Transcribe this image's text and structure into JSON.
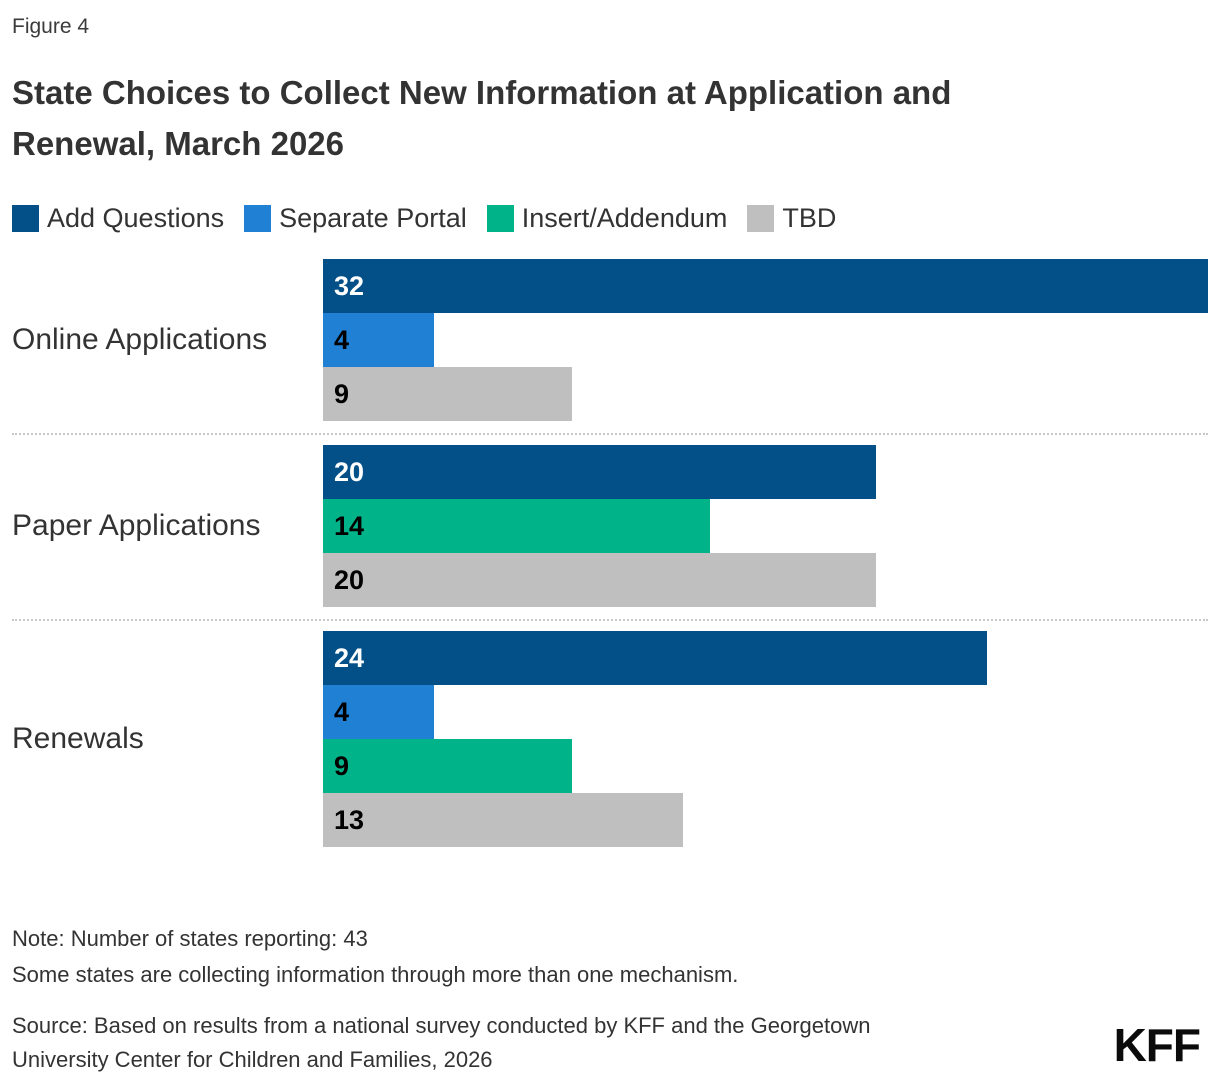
{
  "figure_label": "Figure 4",
  "title": {
    "line1": "State Choices to Collect New Information at Application and",
    "line2": "Renewal, March 2026"
  },
  "legend": [
    {
      "label": "Add Questions",
      "color": "#035089",
      "value_text_color": "#ffffff"
    },
    {
      "label": "Separate Portal",
      "color": "#1f80d4",
      "value_text_color": "#000000"
    },
    {
      "label": "Insert/Addendum",
      "color": "#00b388",
      "value_text_color": "#000000"
    },
    {
      "label": "TBD",
      "color": "#bfbfbf",
      "value_text_color": "#000000"
    }
  ],
  "chart_data": {
    "type": "bar",
    "orientation": "horizontal",
    "title": "State Choices to Collect New Information at Application and Renewal, March 2026",
    "categories": [
      "Online Applications",
      "Paper Applications",
      "Renewals"
    ],
    "series": [
      {
        "name": "Add Questions",
        "color": "#035089",
        "values": [
          32,
          20,
          24
        ]
      },
      {
        "name": "Separate Portal",
        "color": "#1f80d4",
        "values": [
          4,
          null,
          4
        ]
      },
      {
        "name": "Insert/Addendum",
        "color": "#00b388",
        "values": [
          null,
          14,
          9
        ]
      },
      {
        "name": "TBD",
        "color": "#bfbfbf",
        "values": [
          9,
          20,
          13
        ]
      }
    ],
    "xlim": [
      0,
      32
    ],
    "value_labels": "inside-left",
    "legend_position": "top",
    "grid": false
  },
  "notes": {
    "line1": "Note: Number of states reporting: 43",
    "line2": "Some states are collecting information through more than one mechanism."
  },
  "source": {
    "line1": "Source: Based on results from a national survey conducted by KFF and the Georgetown",
    "line2": "University Center for Children and Families, 2026"
  },
  "logo": {
    "text": "KFF"
  }
}
